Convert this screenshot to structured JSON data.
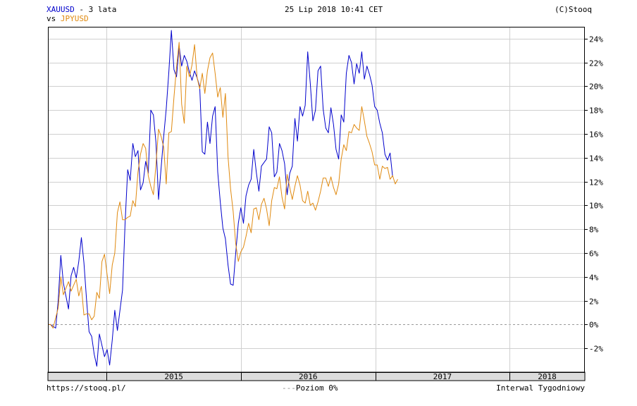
{
  "header": {
    "series1": "XAUUSD",
    "title_suffix": "- 3 lata",
    "vs": "vs",
    "series2": "JPYUSD",
    "timestamp": "25 Lip 2018 10:41 CET",
    "copyright": "(C)Stooq"
  },
  "footer": {
    "url": "https://stooq.pl/",
    "level_label": "Poziom 0%",
    "interval_label": "Interwal Tygodniowy"
  },
  "colors": {
    "series1": "#0000cc",
    "series2": "#e08a10",
    "grid": "#cfcfcf",
    "axis_band": "#dcdcdc"
  },
  "chart_data": {
    "type": "line",
    "x_unit": "weekly",
    "x_start": "2014-07-25",
    "x_end": "2018-07-25",
    "year_labels": [
      "2015",
      "2016",
      "2017",
      "2018"
    ],
    "year_starts": [
      "2015-01-01",
      "2016-01-01",
      "2017-01-01",
      "2018-01-01"
    ],
    "ylim": [
      -4,
      25
    ],
    "y_ticks": [
      -2,
      0,
      2,
      4,
      6,
      8,
      10,
      12,
      14,
      16,
      18,
      20,
      22,
      24
    ],
    "y_tick_labels": [
      "-2%",
      "0%",
      "2%",
      "4%",
      "6%",
      "8%",
      "10%",
      "12%",
      "14%",
      "16%",
      "18%",
      "20%",
      "22%",
      "24%"
    ],
    "zero_line": true,
    "grid": true,
    "series": [
      {
        "name": "XAUUSD",
        "color": "#0000cc",
        "points": [
          [
            "2014-07-25",
            0
          ],
          [
            "2014-08-01",
            0
          ],
          [
            "2014-08-15",
            -0.3
          ],
          [
            "2014-08-22",
            2
          ],
          [
            "2014-08-29",
            5.8
          ],
          [
            "2014-09-05",
            3.5
          ],
          [
            "2014-09-19",
            1.3
          ],
          [
            "2014-09-26",
            4.1
          ],
          [
            "2014-10-03",
            4.8
          ],
          [
            "2014-10-10",
            3.9
          ],
          [
            "2014-10-17",
            5.3
          ],
          [
            "2014-10-24",
            7.3
          ],
          [
            "2014-10-31",
            5.2
          ],
          [
            "2014-11-07",
            2.1
          ],
          [
            "2014-11-14",
            -0.6
          ],
          [
            "2014-11-21",
            -1
          ],
          [
            "2014-11-28",
            -2.5
          ],
          [
            "2014-12-05",
            -3.5
          ],
          [
            "2014-12-12",
            -0.8
          ],
          [
            "2014-12-26",
            -2.7
          ],
          [
            "2015-01-02",
            -2.1
          ],
          [
            "2015-01-09",
            -3.4
          ],
          [
            "2015-01-16",
            -1.3
          ],
          [
            "2015-01-23",
            1.2
          ],
          [
            "2015-01-30",
            -0.5
          ],
          [
            "2015-02-13",
            2.9
          ],
          [
            "2015-02-20",
            8.5
          ],
          [
            "2015-02-27",
            13
          ],
          [
            "2015-03-06",
            12.1
          ],
          [
            "2015-03-13",
            15.2
          ],
          [
            "2015-03-20",
            14.1
          ],
          [
            "2015-03-27",
            14.6
          ],
          [
            "2015-04-03",
            11.3
          ],
          [
            "2015-04-10",
            11.9
          ],
          [
            "2015-04-17",
            13.7
          ],
          [
            "2015-04-24",
            12.7
          ],
          [
            "2015-05-01",
            18
          ],
          [
            "2015-05-08",
            17.6
          ],
          [
            "2015-05-15",
            15.3
          ],
          [
            "2015-05-22",
            10.5
          ],
          [
            "2015-06-05",
            15.8
          ],
          [
            "2015-06-12",
            18.1
          ],
          [
            "2015-06-19",
            21.2
          ],
          [
            "2015-06-26",
            24.7
          ],
          [
            "2015-07-03",
            21.4
          ],
          [
            "2015-07-10",
            20.8
          ],
          [
            "2015-07-17",
            23.4
          ],
          [
            "2015-07-24",
            21.7
          ],
          [
            "2015-07-31",
            22.6
          ],
          [
            "2015-08-07",
            22.1
          ],
          [
            "2015-08-14",
            21.2
          ],
          [
            "2015-08-21",
            20.5
          ],
          [
            "2015-08-28",
            21.3
          ],
          [
            "2015-09-04",
            20.7
          ],
          [
            "2015-09-11",
            20
          ],
          [
            "2015-09-18",
            14.5
          ],
          [
            "2015-09-25",
            14.3
          ],
          [
            "2015-10-02",
            17
          ],
          [
            "2015-10-09",
            15.2
          ],
          [
            "2015-10-16",
            17.5
          ],
          [
            "2015-10-23",
            18.3
          ],
          [
            "2015-10-30",
            12.8
          ],
          [
            "2015-11-06",
            10.3
          ],
          [
            "2015-11-13",
            8.1
          ],
          [
            "2015-11-20",
            7.2
          ],
          [
            "2015-11-27",
            5
          ],
          [
            "2015-12-04",
            3.4
          ],
          [
            "2015-12-11",
            3.3
          ],
          [
            "2015-12-18",
            6
          ],
          [
            "2015-12-25",
            8.5
          ],
          [
            "2016-01-01",
            9.8
          ],
          [
            "2016-01-08",
            8.5
          ],
          [
            "2016-01-15",
            10.8
          ],
          [
            "2016-01-22",
            11.7
          ],
          [
            "2016-01-29",
            12.2
          ],
          [
            "2016-02-05",
            14.7
          ],
          [
            "2016-02-12",
            12.8
          ],
          [
            "2016-02-19",
            11.2
          ],
          [
            "2016-02-26",
            13.3
          ],
          [
            "2016-03-04",
            13.6
          ],
          [
            "2016-03-11",
            13.9
          ],
          [
            "2016-03-18",
            16.6
          ],
          [
            "2016-03-25",
            16.1
          ],
          [
            "2016-04-01",
            12.4
          ],
          [
            "2016-04-08",
            12.8
          ],
          [
            "2016-04-15",
            15.2
          ],
          [
            "2016-04-22",
            14.6
          ],
          [
            "2016-04-29",
            13.5
          ],
          [
            "2016-05-06",
            10.9
          ],
          [
            "2016-05-13",
            12.7
          ],
          [
            "2016-05-20",
            13.3
          ],
          [
            "2016-05-27",
            17.3
          ],
          [
            "2016-06-03",
            15.4
          ],
          [
            "2016-06-10",
            18.3
          ],
          [
            "2016-06-17",
            17.5
          ],
          [
            "2016-06-24",
            18.4
          ],
          [
            "2016-07-01",
            22.9
          ],
          [
            "2016-07-08",
            20.2
          ],
          [
            "2016-07-15",
            17.1
          ],
          [
            "2016-07-22",
            18
          ],
          [
            "2016-07-29",
            21.3
          ],
          [
            "2016-08-05",
            21.7
          ],
          [
            "2016-08-12",
            18.1
          ],
          [
            "2016-08-19",
            16.5
          ],
          [
            "2016-08-26",
            16.1
          ],
          [
            "2016-09-02",
            18.2
          ],
          [
            "2016-09-09",
            16.8
          ],
          [
            "2016-09-16",
            14.7
          ],
          [
            "2016-09-23",
            13.9
          ],
          [
            "2016-09-30",
            17.6
          ],
          [
            "2016-10-07",
            17
          ],
          [
            "2016-10-14",
            21.1
          ],
          [
            "2016-10-21",
            22.6
          ],
          [
            "2016-10-28",
            22
          ],
          [
            "2016-11-04",
            20.2
          ],
          [
            "2016-11-11",
            21.9
          ],
          [
            "2016-11-18",
            21.1
          ],
          [
            "2016-11-25",
            22.9
          ],
          [
            "2016-12-02",
            20.6
          ],
          [
            "2016-12-09",
            21.7
          ],
          [
            "2016-12-16",
            21
          ],
          [
            "2016-12-23",
            20.1
          ],
          [
            "2016-12-30",
            18.3
          ],
          [
            "2017-01-06",
            18
          ],
          [
            "2017-01-13",
            16.9
          ],
          [
            "2017-01-20",
            16.1
          ],
          [
            "2017-01-27",
            14.3
          ],
          [
            "2017-02-03",
            13.8
          ],
          [
            "2017-02-10",
            14.4
          ],
          [
            "2017-02-17",
            12.4
          ]
        ]
      },
      {
        "name": "JPYUSD",
        "color": "#e08a10",
        "points": [
          [
            "2014-07-25",
            0
          ],
          [
            "2014-08-01",
            0
          ],
          [
            "2014-08-08",
            -0.3
          ],
          [
            "2014-08-22",
            1.4
          ],
          [
            "2014-08-29",
            4
          ],
          [
            "2014-09-05",
            2.5
          ],
          [
            "2014-09-19",
            3.6
          ],
          [
            "2014-09-26",
            2.8
          ],
          [
            "2014-10-03",
            3.3
          ],
          [
            "2014-10-10",
            3.8
          ],
          [
            "2014-10-17",
            2.4
          ],
          [
            "2014-10-24",
            3.2
          ],
          [
            "2014-10-31",
            0.8
          ],
          [
            "2014-11-07",
            0.9
          ],
          [
            "2014-11-14",
            0.9
          ],
          [
            "2014-11-21",
            0.4
          ],
          [
            "2014-11-28",
            0.7
          ],
          [
            "2014-12-05",
            2.7
          ],
          [
            "2014-12-12",
            2.2
          ],
          [
            "2014-12-19",
            5.3
          ],
          [
            "2014-12-26",
            5.9
          ],
          [
            "2015-01-02",
            4.2
          ],
          [
            "2015-01-09",
            2.6
          ],
          [
            "2015-01-16",
            5
          ],
          [
            "2015-01-23",
            6
          ],
          [
            "2015-01-30",
            9.4
          ],
          [
            "2015-02-06",
            10.3
          ],
          [
            "2015-02-13",
            8.8
          ],
          [
            "2015-02-20",
            8.8
          ],
          [
            "2015-02-27",
            9
          ],
          [
            "2015-03-06",
            9.1
          ],
          [
            "2015-03-13",
            10.4
          ],
          [
            "2015-03-20",
            9.9
          ],
          [
            "2015-03-27",
            12.8
          ],
          [
            "2015-04-03",
            14.3
          ],
          [
            "2015-04-10",
            15.2
          ],
          [
            "2015-04-17",
            14.8
          ],
          [
            "2015-04-24",
            12.5
          ],
          [
            "2015-05-01",
            11.6
          ],
          [
            "2015-05-08",
            10.9
          ],
          [
            "2015-05-15",
            13.4
          ],
          [
            "2015-05-22",
            16.4
          ],
          [
            "2015-05-29",
            15.8
          ],
          [
            "2015-06-05",
            14.9
          ],
          [
            "2015-06-12",
            11.8
          ],
          [
            "2015-06-19",
            16.1
          ],
          [
            "2015-06-26",
            16.2
          ],
          [
            "2015-07-03",
            19.1
          ],
          [
            "2015-07-10",
            21.6
          ],
          [
            "2015-07-17",
            23.7
          ],
          [
            "2015-07-24",
            18.5
          ],
          [
            "2015-07-31",
            16.9
          ],
          [
            "2015-08-07",
            21.7
          ],
          [
            "2015-08-14",
            20.8
          ],
          [
            "2015-08-21",
            21.8
          ],
          [
            "2015-08-28",
            23.5
          ],
          [
            "2015-09-04",
            20.7
          ],
          [
            "2015-09-11",
            19.8
          ],
          [
            "2015-09-18",
            21.1
          ],
          [
            "2015-09-25",
            19.4
          ],
          [
            "2015-10-02",
            21.3
          ],
          [
            "2015-10-09",
            22.4
          ],
          [
            "2015-10-16",
            22.8
          ],
          [
            "2015-10-23",
            21.1
          ],
          [
            "2015-10-30",
            19.1
          ],
          [
            "2015-11-06",
            19.9
          ],
          [
            "2015-11-13",
            17.4
          ],
          [
            "2015-11-20",
            19.4
          ],
          [
            "2015-11-27",
            14.1
          ],
          [
            "2015-12-04",
            11.4
          ],
          [
            "2015-12-11",
            9.5
          ],
          [
            "2015-12-18",
            6.8
          ],
          [
            "2015-12-25",
            5.3
          ],
          [
            "2016-01-01",
            6.1
          ],
          [
            "2016-01-08",
            6.5
          ],
          [
            "2016-01-15",
            7.4
          ],
          [
            "2016-01-22",
            8.5
          ],
          [
            "2016-01-29",
            7.7
          ],
          [
            "2016-02-05",
            9.7
          ],
          [
            "2016-02-12",
            9.8
          ],
          [
            "2016-02-19",
            8.8
          ],
          [
            "2016-02-26",
            10.1
          ],
          [
            "2016-03-04",
            10.6
          ],
          [
            "2016-03-11",
            9.7
          ],
          [
            "2016-03-18",
            8.3
          ],
          [
            "2016-03-25",
            10.4
          ],
          [
            "2016-04-01",
            11.5
          ],
          [
            "2016-04-08",
            11.4
          ],
          [
            "2016-04-15",
            12.4
          ],
          [
            "2016-04-22",
            10.7
          ],
          [
            "2016-04-29",
            9.7
          ],
          [
            "2016-05-06",
            12.6
          ],
          [
            "2016-05-13",
            11.5
          ],
          [
            "2016-05-20",
            10.5
          ],
          [
            "2016-05-27",
            11.6
          ],
          [
            "2016-06-03",
            12.5
          ],
          [
            "2016-06-10",
            11.7
          ],
          [
            "2016-06-17",
            10.4
          ],
          [
            "2016-06-24",
            10.2
          ],
          [
            "2016-07-01",
            11.2
          ],
          [
            "2016-07-08",
            10
          ],
          [
            "2016-07-15",
            10.2
          ],
          [
            "2016-07-22",
            9.6
          ],
          [
            "2016-07-29",
            10.3
          ],
          [
            "2016-08-05",
            11.2
          ],
          [
            "2016-08-12",
            12.3
          ],
          [
            "2016-08-19",
            12.3
          ],
          [
            "2016-08-26",
            11.6
          ],
          [
            "2016-09-02",
            12.4
          ],
          [
            "2016-09-09",
            11.5
          ],
          [
            "2016-09-16",
            10.9
          ],
          [
            "2016-09-23",
            11.8
          ],
          [
            "2016-09-30",
            13.9
          ],
          [
            "2016-10-07",
            15.1
          ],
          [
            "2016-10-14",
            14.6
          ],
          [
            "2016-10-21",
            16.2
          ],
          [
            "2016-10-28",
            16.1
          ],
          [
            "2016-11-04",
            16.8
          ],
          [
            "2016-11-11",
            16.5
          ],
          [
            "2016-11-18",
            16.3
          ],
          [
            "2016-11-25",
            18.3
          ],
          [
            "2016-12-02",
            17.1
          ],
          [
            "2016-12-09",
            15.8
          ],
          [
            "2016-12-16",
            15.2
          ],
          [
            "2016-12-23",
            14.5
          ],
          [
            "2016-12-30",
            13.4
          ],
          [
            "2017-01-06",
            13.4
          ],
          [
            "2017-01-13",
            12.2
          ],
          [
            "2017-01-20",
            13.3
          ],
          [
            "2017-01-27",
            13.1
          ],
          [
            "2017-02-03",
            13.2
          ],
          [
            "2017-02-10",
            12.2
          ],
          [
            "2017-02-17",
            12.5
          ],
          [
            "2017-02-24",
            11.8
          ],
          [
            "2017-03-03",
            12.2
          ]
        ]
      }
    ]
  }
}
